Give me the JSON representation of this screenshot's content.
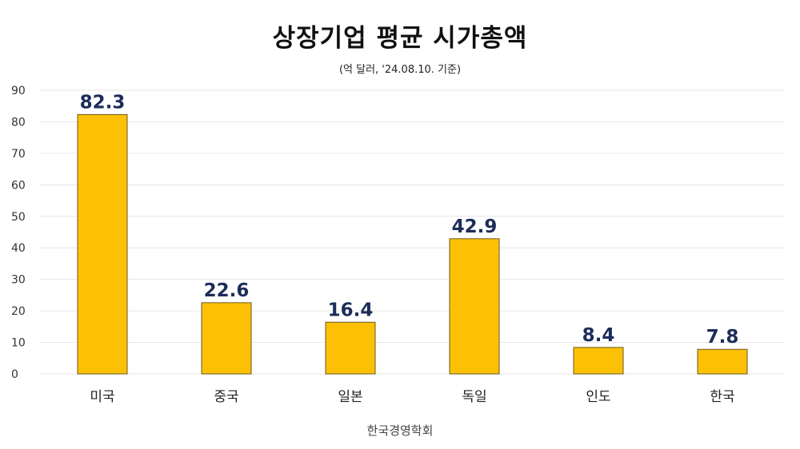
{
  "chart_data": {
    "type": "bar",
    "title": "상장기업 평균 시가총액",
    "subtitle": "(억 달러, '24.08.10. 기준)",
    "source": "한국경영학회",
    "categories": [
      "미국",
      "중국",
      "일본",
      "독일",
      "인도",
      "한국"
    ],
    "values": [
      82.3,
      22.6,
      16.4,
      42.9,
      8.4,
      7.8
    ],
    "value_labels": [
      "82.3",
      "22.6",
      "16.4",
      "42.9",
      "8.4",
      "7.8"
    ],
    "ylim": [
      0,
      90
    ],
    "yticks": [
      0,
      10,
      20,
      30,
      40,
      50,
      60,
      70,
      80,
      90
    ],
    "grid": true,
    "legend": "none",
    "bar_color": "#fcc004",
    "label_color": "#1c2d5a"
  }
}
